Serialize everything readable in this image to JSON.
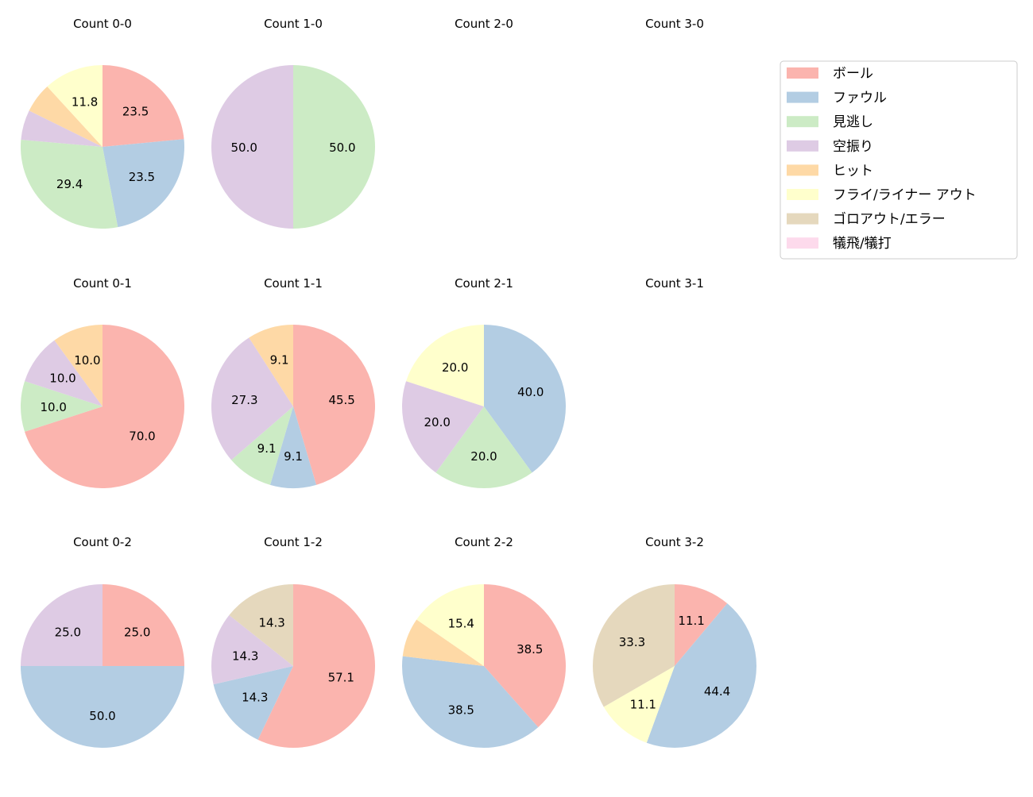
{
  "chart_data": {
    "type": "pie",
    "start_angle": "top",
    "direction": "clockwise",
    "legend_placement": "top-right",
    "legend": [
      {
        "name": "ボール",
        "color": "#fbb4ae"
      },
      {
        "name": "ファウル",
        "color": "#b3cde3"
      },
      {
        "name": "見逃し",
        "color": "#ccebc5"
      },
      {
        "name": "空振り",
        "color": "#decbe4"
      },
      {
        "name": "ヒット",
        "color": "#fed9a6"
      },
      {
        "name": "フライ/ライナー アウト",
        "color": "#ffffcc"
      },
      {
        "name": "ゴロアウト/エラー",
        "color": "#e5d8bd"
      },
      {
        "name": "犠飛/犠打",
        "color": "#fddaec"
      }
    ],
    "pies": [
      {
        "title": "Count 0-0",
        "values": [
          23.5,
          23.5,
          29.4,
          5.9,
          5.9,
          11.8,
          0,
          0
        ]
      },
      {
        "title": "Count 1-0",
        "values": [
          0,
          0,
          50.0,
          50.0,
          0,
          0,
          0,
          0
        ]
      },
      {
        "title": "Count 2-0",
        "values": []
      },
      {
        "title": "Count 3-0",
        "values": []
      },
      {
        "title": "Count 0-1",
        "values": [
          70.0,
          0,
          10.0,
          10.0,
          10.0,
          0,
          0,
          0
        ]
      },
      {
        "title": "Count 1-1",
        "values": [
          45.5,
          9.1,
          9.1,
          27.3,
          9.1,
          0,
          0,
          0
        ]
      },
      {
        "title": "Count 2-1",
        "values": [
          0,
          40.0,
          20.0,
          20.0,
          0,
          20.0,
          0,
          0
        ]
      },
      {
        "title": "Count 3-1",
        "values": []
      },
      {
        "title": "Count 0-2",
        "values": [
          25.0,
          50.0,
          0,
          25.0,
          0,
          0,
          0,
          0
        ]
      },
      {
        "title": "Count 1-2",
        "values": [
          57.1,
          14.3,
          0,
          14.3,
          0,
          0,
          14.3,
          0
        ]
      },
      {
        "title": "Count 2-2",
        "values": [
          38.5,
          38.5,
          0,
          0,
          7.7,
          15.4,
          0,
          0
        ]
      },
      {
        "title": "Count 3-2",
        "values": [
          11.1,
          44.4,
          0,
          0,
          0,
          11.1,
          33.3,
          0
        ]
      }
    ]
  }
}
